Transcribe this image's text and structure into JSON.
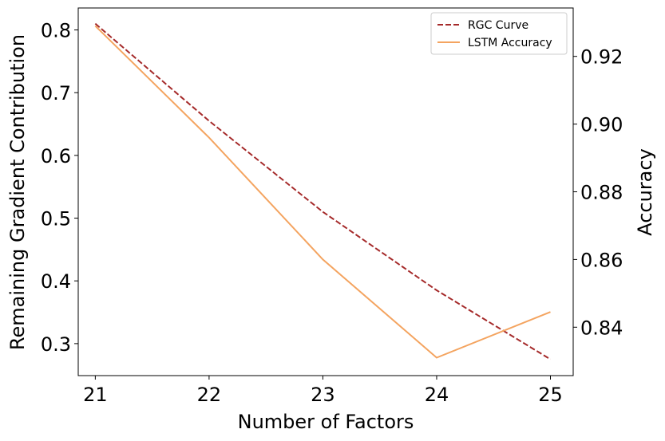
{
  "chart_data": {
    "type": "line",
    "x": [
      21,
      22,
      23,
      24,
      25
    ],
    "xlabel": "Number of Factors",
    "ylabel_left": "Remaining Gradient Contribution",
    "ylabel_right": "Accuracy",
    "xlim": [
      20.85,
      25.2
    ],
    "ylim_left": [
      0.249,
      0.835
    ],
    "ylim_right": [
      0.8257,
      0.9343
    ],
    "x_ticks": [
      21,
      22,
      23,
      24,
      25
    ],
    "y_ticks_left": [
      0.3,
      0.4,
      0.5,
      0.6,
      0.7,
      0.8
    ],
    "y_ticks_right": [
      0.84,
      0.86,
      0.88,
      0.9,
      0.92
    ],
    "series": [
      {
        "name": "RGC Curve",
        "axis": "left",
        "style": "dashed",
        "color": "#a52a2a",
        "values": [
          0.81,
          0.655,
          0.51,
          0.385,
          0.275
        ]
      },
      {
        "name": "LSTM Accuracy",
        "axis": "right",
        "style": "solid",
        "color": "#f4a460",
        "values": [
          0.929,
          0.896,
          0.86,
          0.831,
          0.8445
        ]
      }
    ],
    "legend": {
      "position": "top-right"
    },
    "grid": false
  }
}
